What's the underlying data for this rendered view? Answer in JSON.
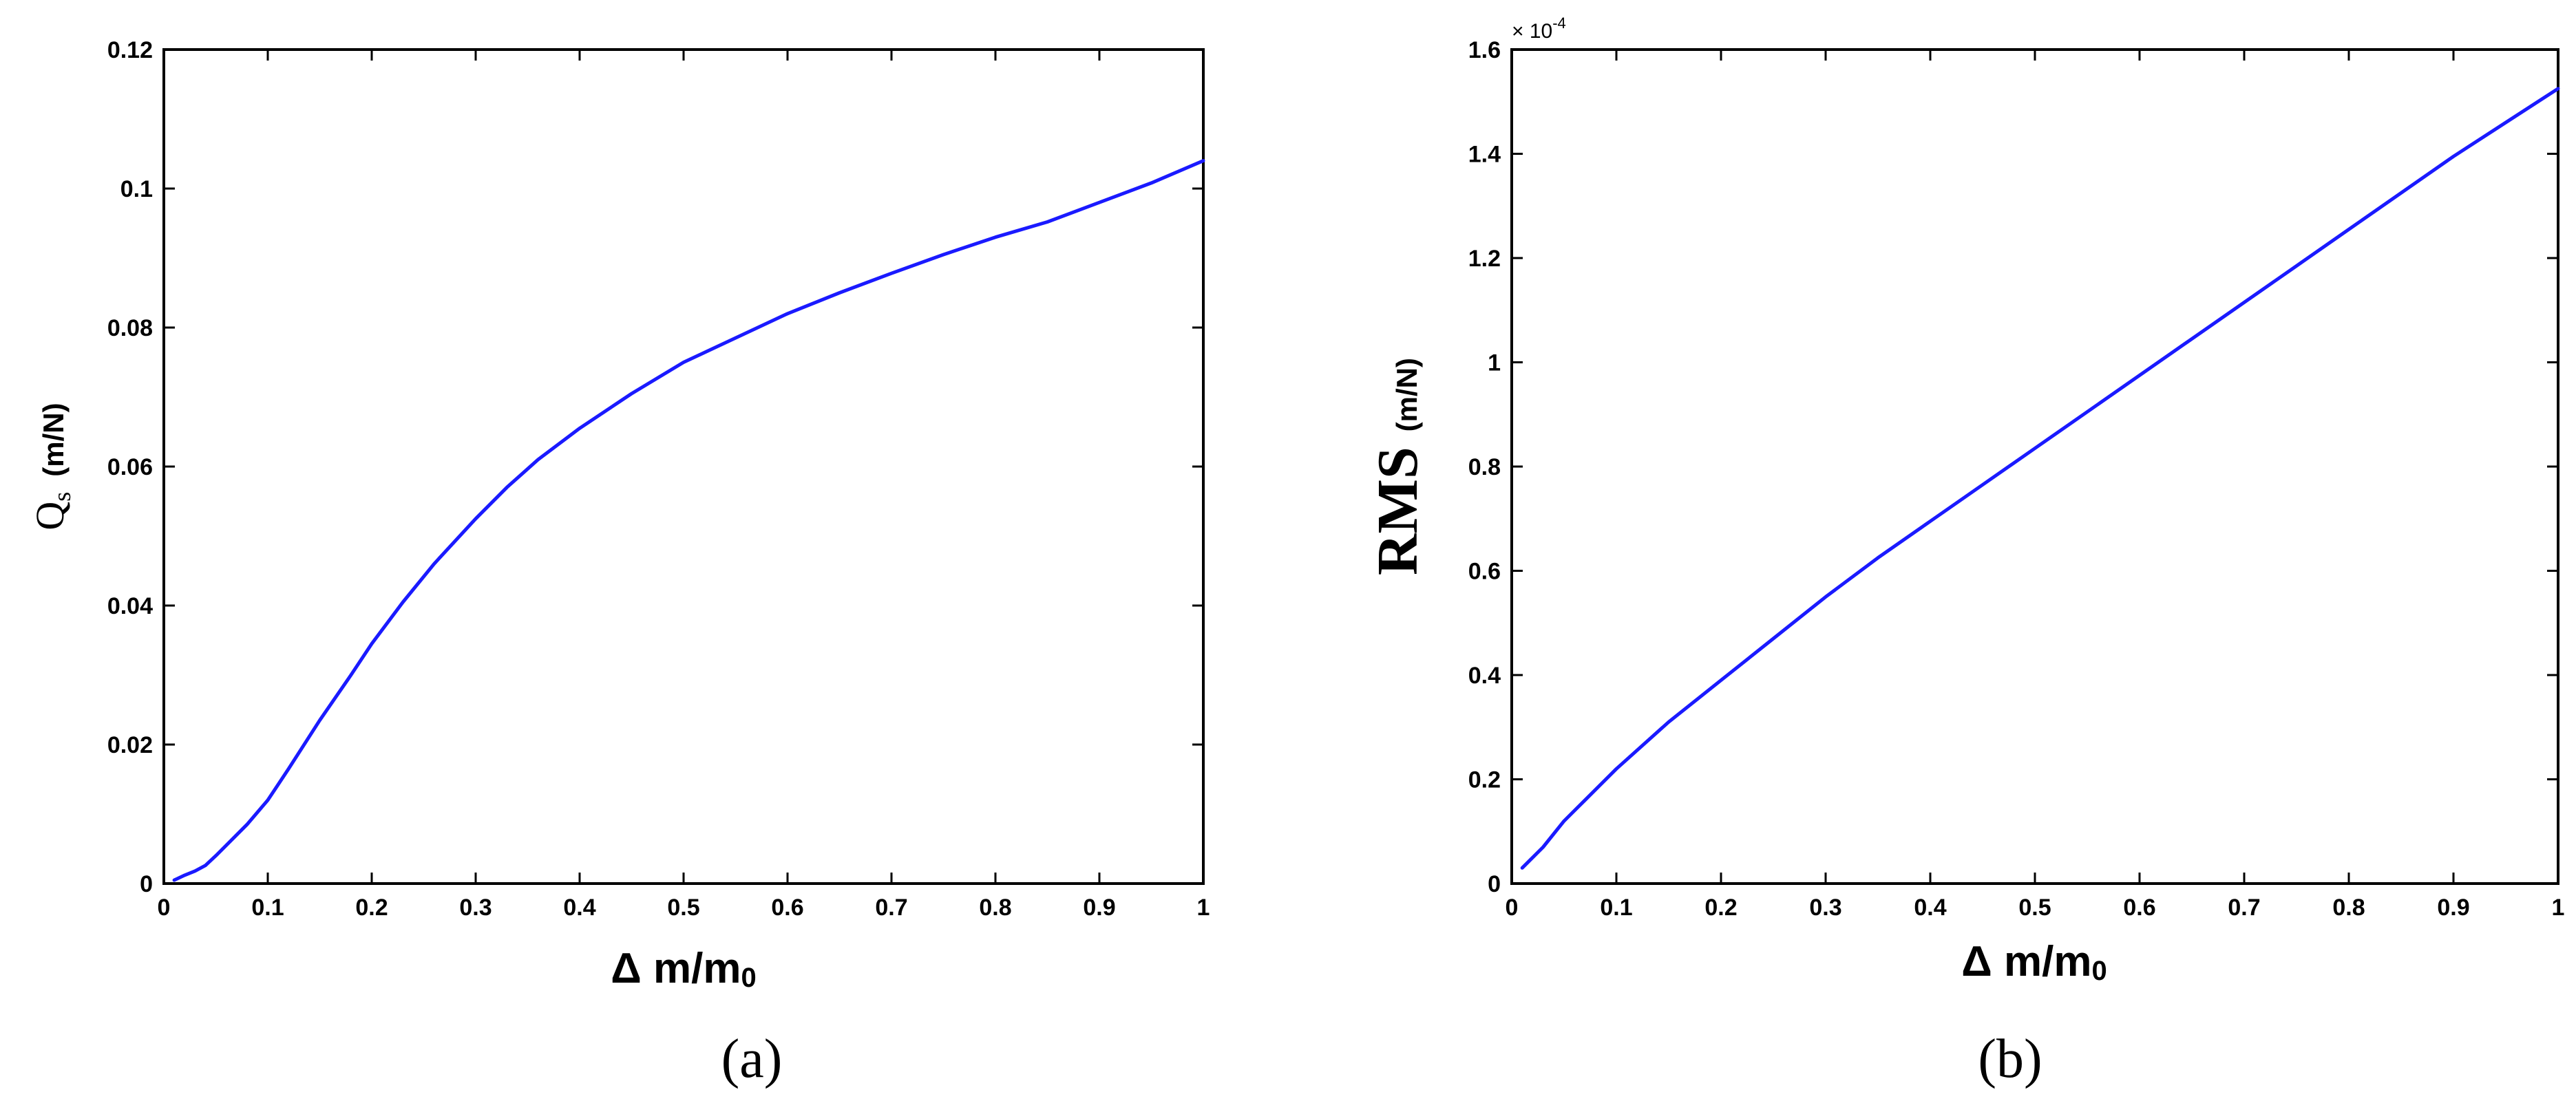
{
  "chart_data": [
    {
      "type": "line",
      "panel_label": "(a)",
      "xlabel": "Δ m/m0",
      "xlabel_main": "Δ m/m",
      "xlabel_sub": "0",
      "ylabel": "Qs (m/N)",
      "ylabel_main": "Q",
      "ylabel_sub": "s",
      "ylabel_unit": "(m/N)",
      "xlim": [
        0,
        1
      ],
      "ylim": [
        0,
        0.12
      ],
      "x_ticks": [
        "0",
        "0.1",
        "0.2",
        "0.3",
        "0.4",
        "0.5",
        "0.6",
        "0.7",
        "0.8",
        "0.9",
        "1"
      ],
      "y_ticks": [
        "0",
        "0.02",
        "0.04",
        "0.06",
        "0.08",
        "0.1",
        "0.12"
      ],
      "grid": false,
      "series": [
        {
          "color": "#1a1aff",
          "x": [
            0.01,
            0.02,
            0.03,
            0.04,
            0.05,
            0.06,
            0.08,
            0.1,
            0.12,
            0.15,
            0.18,
            0.2,
            0.23,
            0.26,
            0.3,
            0.33,
            0.36,
            0.4,
            0.45,
            0.5,
            0.55,
            0.6,
            0.65,
            0.7,
            0.75,
            0.8,
            0.85,
            0.9,
            0.95,
            1.0
          ],
          "y": [
            0.0005,
            0.0012,
            0.0018,
            0.0026,
            0.004,
            0.0055,
            0.0085,
            0.012,
            0.0165,
            0.0235,
            0.03,
            0.0345,
            0.0405,
            0.046,
            0.0525,
            0.057,
            0.061,
            0.0655,
            0.0705,
            0.075,
            0.0785,
            0.082,
            0.085,
            0.0878,
            0.0905,
            0.093,
            0.0952,
            0.098,
            0.1008,
            0.104
          ]
        }
      ]
    },
    {
      "type": "line",
      "panel_label": "(b)",
      "xlabel": "Δ m/m0",
      "xlabel_main": "Δ m/m",
      "xlabel_sub": "0",
      "ylabel": "RMS (m/N)",
      "ylabel_main": "RMS",
      "ylabel_unit": "(m/N)",
      "y_multiplier": "× 10",
      "y_multiplier_exp": "-4",
      "xlim": [
        0,
        1
      ],
      "ylim": [
        0,
        1.6
      ],
      "x_ticks": [
        "0",
        "0.1",
        "0.2",
        "0.3",
        "0.4",
        "0.5",
        "0.6",
        "0.7",
        "0.8",
        "0.9",
        "1"
      ],
      "y_ticks": [
        "0",
        "0.2",
        "0.4",
        "0.6",
        "0.8",
        "1",
        "1.2",
        "1.4",
        "1.6"
      ],
      "grid": false,
      "series": [
        {
          "color": "#1a1aff",
          "x": [
            0.01,
            0.03,
            0.05,
            0.07,
            0.1,
            0.15,
            0.2,
            0.25,
            0.3,
            0.35,
            0.4,
            0.45,
            0.5,
            0.55,
            0.6,
            0.65,
            0.7,
            0.75,
            0.8,
            0.85,
            0.9,
            0.95,
            1.0
          ],
          "y": [
            0.03,
            0.07,
            0.12,
            0.16,
            0.22,
            0.31,
            0.39,
            0.47,
            0.55,
            0.625,
            0.695,
            0.765,
            0.835,
            0.905,
            0.975,
            1.045,
            1.115,
            1.185,
            1.255,
            1.325,
            1.395,
            1.46,
            1.525
          ]
        }
      ]
    }
  ]
}
